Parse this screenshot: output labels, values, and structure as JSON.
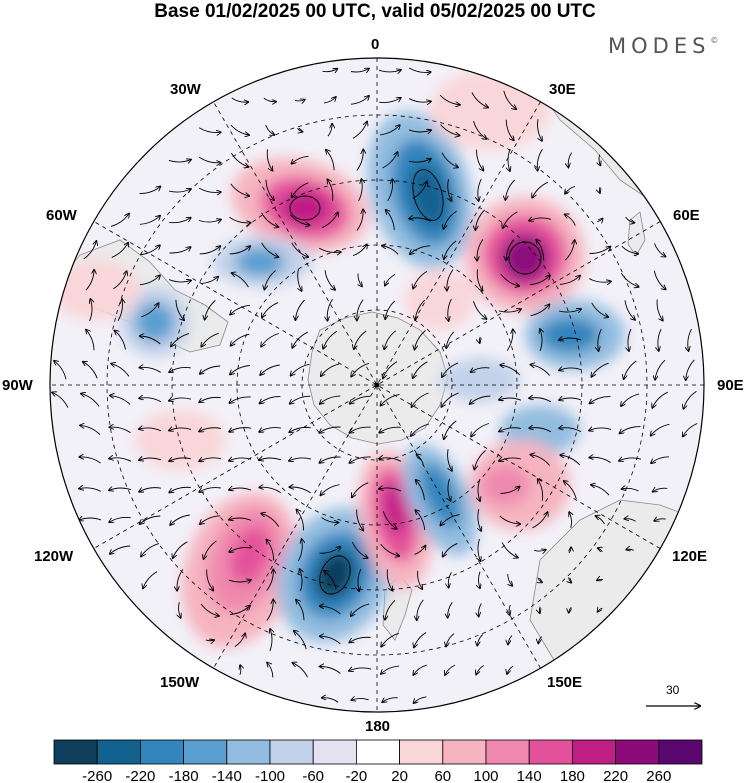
{
  "title": "Base 01/02/2025 00 UTC, valid 05/02/2025 00 UTC",
  "brand": "MODES",
  "brand_mark": "©",
  "longitude_labels": {
    "lon_0": "0",
    "lon_30e": "30E",
    "lon_60e": "60E",
    "lon_90e": "90E",
    "lon_120e": "120E",
    "lon_150e": "150E",
    "lon_180": "180",
    "lon_150w": "150W",
    "lon_120w": "120W",
    "lon_90w": "90W",
    "lon_60w": "60W",
    "lon_30w": "30W"
  },
  "reference_vector": "30",
  "colorbar": {
    "ticks": [
      "-260",
      "-220",
      "-180",
      "-140",
      "-100",
      "-60",
      "-20",
      "20",
      "60",
      "100",
      "140",
      "180",
      "220",
      "260"
    ],
    "colors": [
      "#0e3e5c",
      "#13618f",
      "#3285bd",
      "#5a9fcf",
      "#93bde0",
      "#c3d2ea",
      "#e4e2f1",
      "#ffffff",
      "#f9d6d9",
      "#f6b4c0",
      "#ef89ae",
      "#e4519b",
      "#bf1f87",
      "#8c0b7b",
      "#5b0770"
    ]
  },
  "colors": {
    "land": "#ebebeb",
    "coast": "#888888",
    "frame": "#000000"
  }
}
